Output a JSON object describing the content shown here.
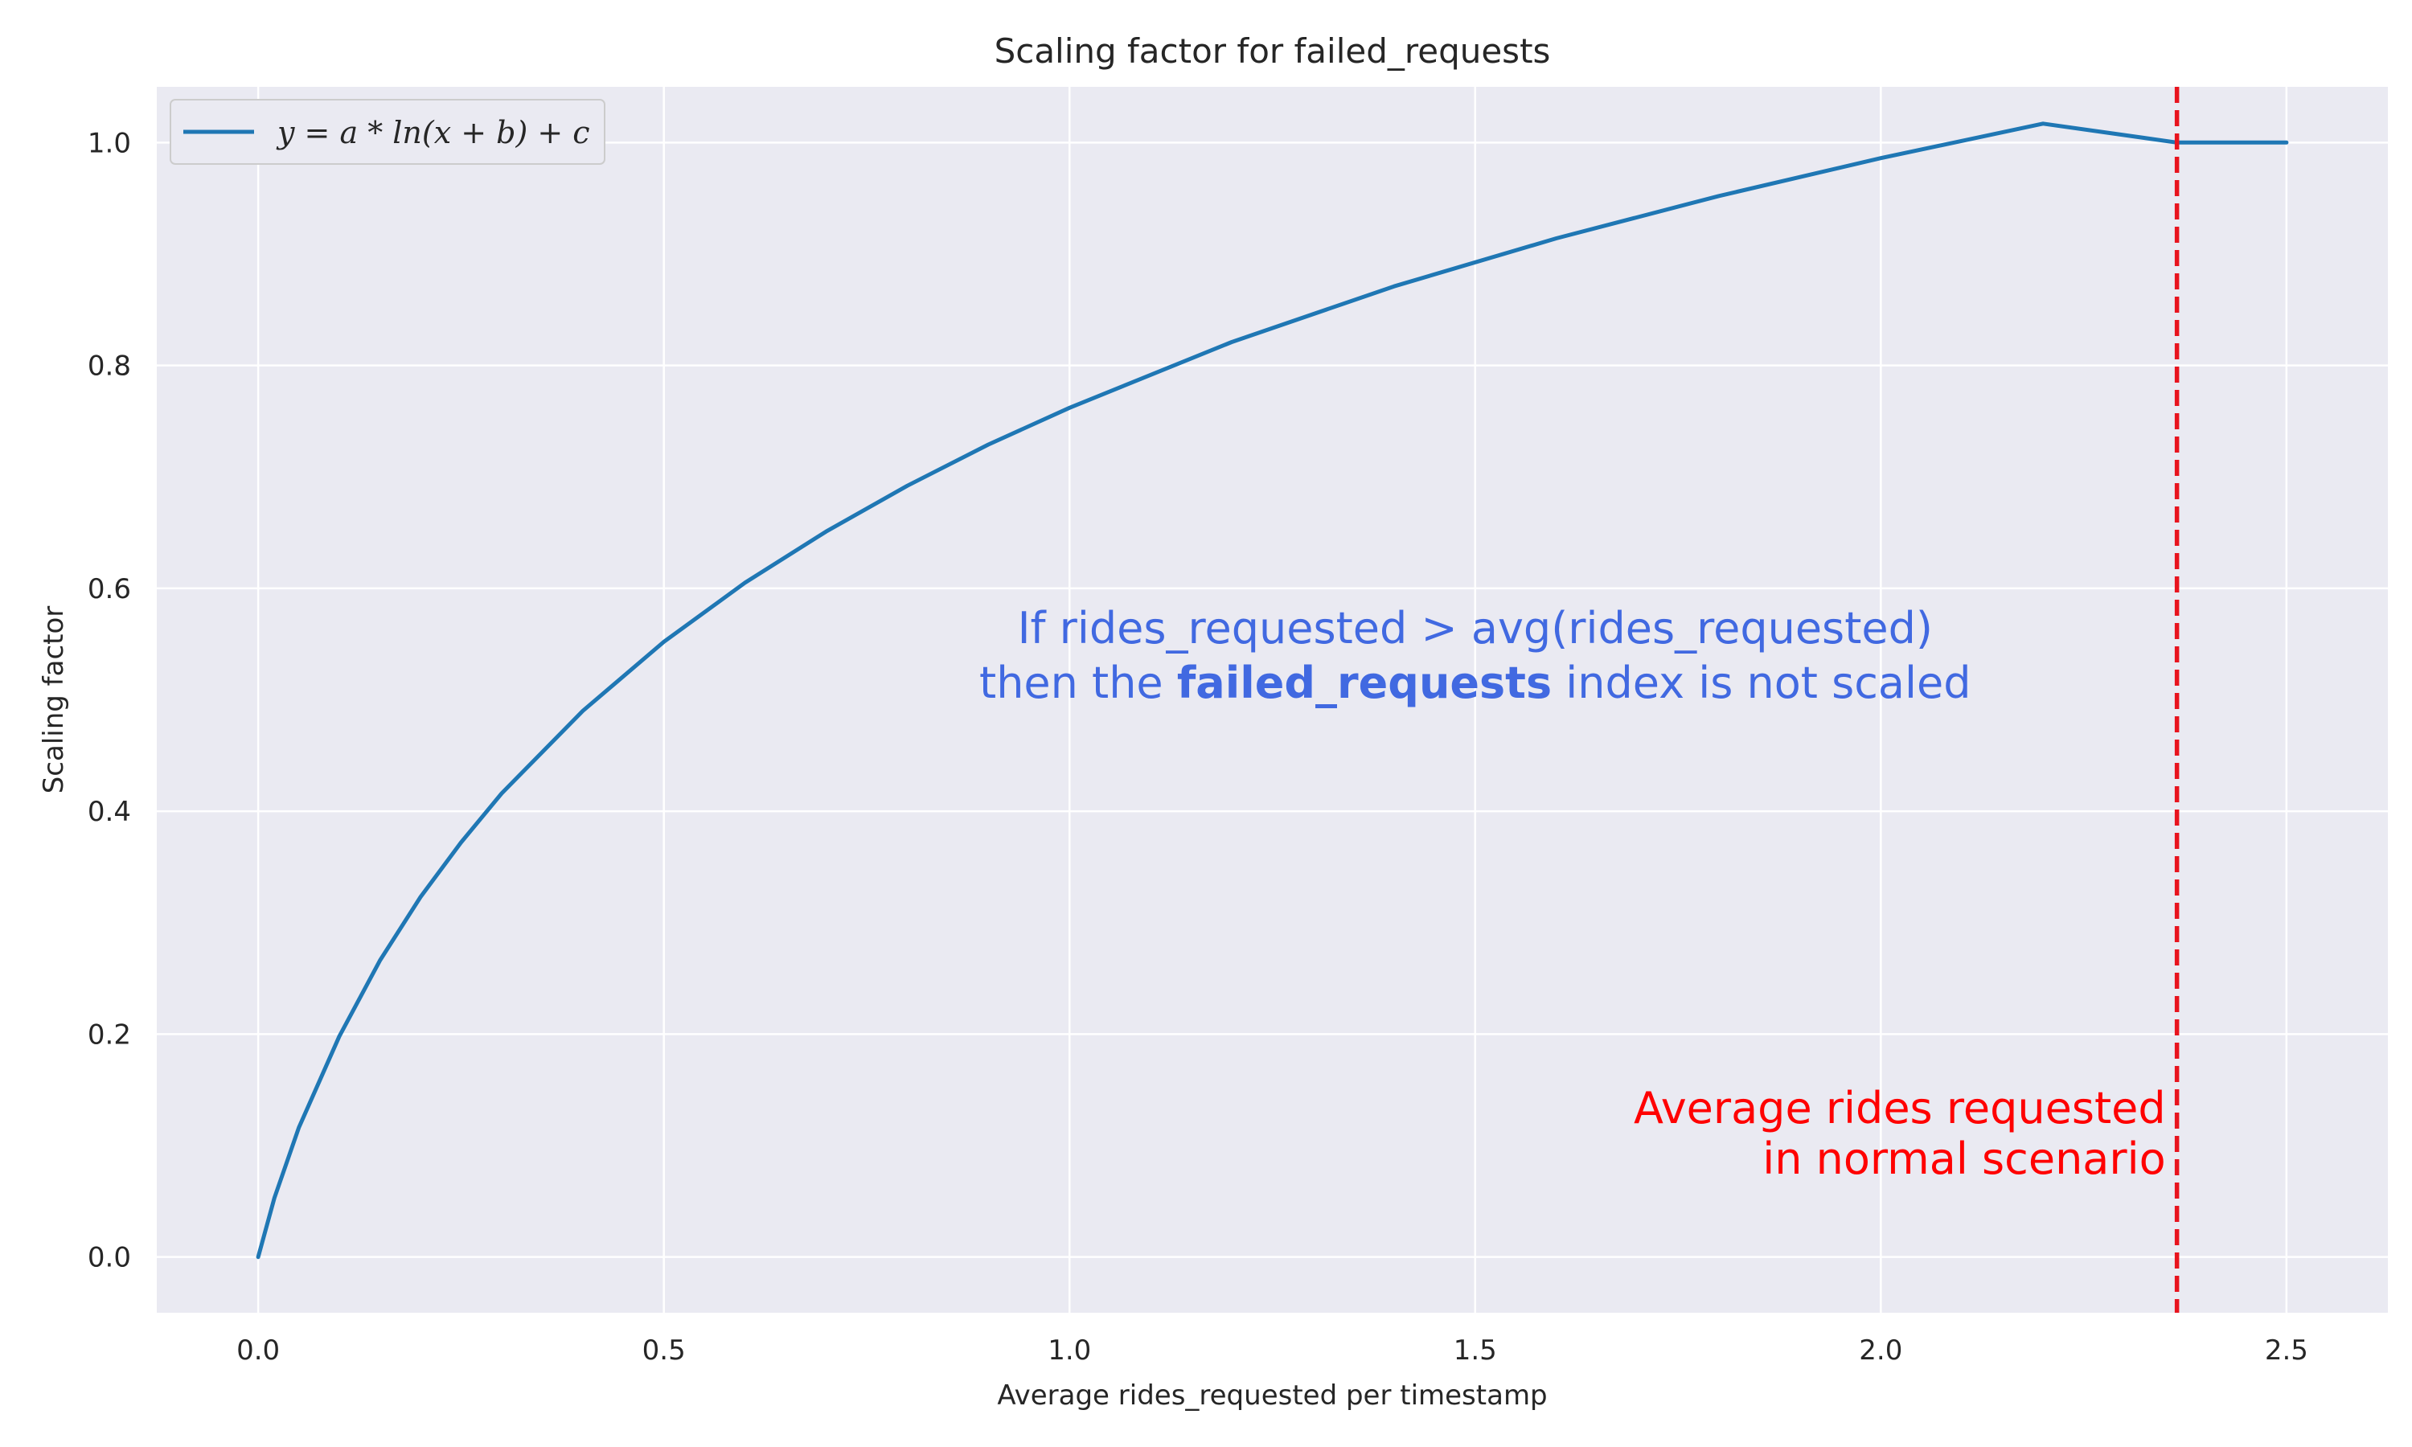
{
  "chart_data": {
    "type": "line",
    "title": "Scaling factor for failed_requests",
    "xlabel": "Average rides_requested per timestamp",
    "ylabel": "Scaling factor",
    "xlim": [
      -0.125,
      2.625
    ],
    "ylim": [
      -0.05,
      1.05
    ],
    "x_ticks": [
      0.0,
      0.5,
      1.0,
      1.5,
      2.0,
      2.5
    ],
    "x_tick_labels": [
      "0.0",
      "0.5",
      "1.0",
      "1.5",
      "2.0",
      "2.5"
    ],
    "y_ticks": [
      0.0,
      0.2,
      0.4,
      0.6,
      0.8,
      1.0
    ],
    "y_tick_labels": [
      "0.0",
      "0.2",
      "0.4",
      "0.6",
      "0.8",
      "1.0"
    ],
    "grid": true,
    "legend_position": "top-left",
    "background_color": "#eaeaf2",
    "grid_color": "#ffffff",
    "series": [
      {
        "name": "y = a * ln(x + b) + c",
        "color": "#1f77b4",
        "x": [
          0.0,
          0.02,
          0.05,
          0.1,
          0.15,
          0.2,
          0.25,
          0.3,
          0.4,
          0.5,
          0.6,
          0.7,
          0.8,
          0.9,
          1.0,
          1.2,
          1.4,
          1.6,
          1.8,
          2.0,
          2.2,
          2.365,
          2.5
        ],
        "y": [
          0.0,
          0.053,
          0.116,
          0.198,
          0.266,
          0.323,
          0.372,
          0.416,
          0.49,
          0.552,
          0.605,
          0.651,
          0.692,
          0.729,
          0.762,
          0.821,
          0.871,
          0.914,
          0.952,
          0.986,
          1.017,
          1.0,
          1.0
        ]
      }
    ],
    "vline": {
      "x": 2.365,
      "color": "#e8141e",
      "style": "dashed"
    },
    "annotations": {
      "center_line1": "If rides_requested > avg(rides_requested)",
      "center_line2_prefix": "then the ",
      "center_line2_bold": "failed_requests",
      "center_line2_suffix": " index is not scaled",
      "center_color": "#4169e1",
      "vline_label_line1": "Average rides requested",
      "vline_label_line2": "in normal scenario",
      "vline_label_color": "#ff0000"
    }
  }
}
